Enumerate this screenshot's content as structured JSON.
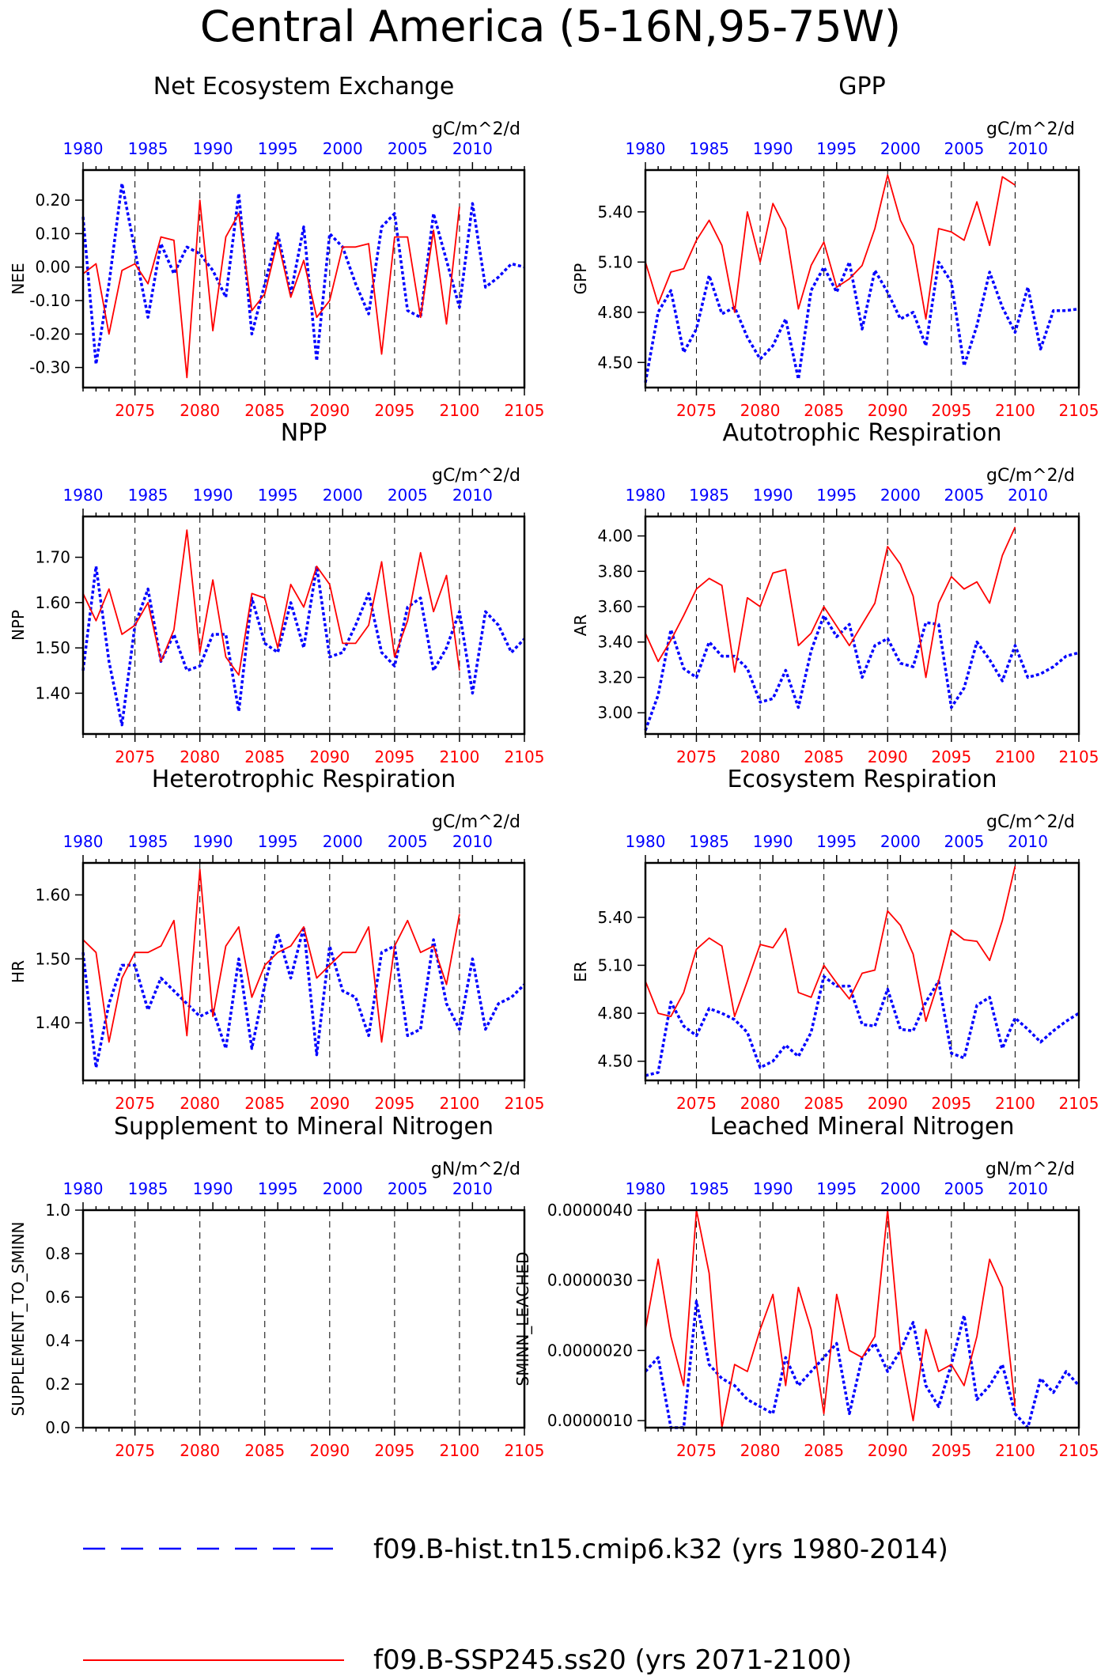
{
  "title": "Central America (5-16N,95-75W)",
  "colors": {
    "hist": "#0000ff",
    "ssp": "#ff0000",
    "axis": "#000000",
    "grid": "#000000"
  },
  "legend": {
    "hist_label": "f09.B-hist.tn15.cmip6.k32 (yrs 1980-2014)",
    "ssp_label": "f09.B-SSP245.ss20 (yrs 2071-2100)"
  },
  "chart_data": [
    {
      "type": "line",
      "title": "Net Ecosystem Exchange",
      "ylabel": "NEE",
      "units": "gC/m^2/d",
      "ylim": [
        -0.36,
        0.29
      ],
      "yticks": [
        0.2,
        0.1,
        0.0,
        -0.1,
        -0.2,
        -0.3
      ],
      "ytick_labels": [
        "0.20",
        "0.10",
        "0.00",
        "-0.10",
        "-0.20",
        "-0.30"
      ],
      "top_xticks": [
        "1980",
        "1985",
        "1990",
        "1995",
        "2000",
        "2005",
        "2010"
      ],
      "bottom_xticks": [
        "2075",
        "2080",
        "2085",
        "2090",
        "2095",
        "2100",
        "2105"
      ],
      "series": [
        {
          "name": "f09.B-hist.tn15.cmip6.k32",
          "start_year": 1980,
          "values": [
            0.15,
            -0.29,
            -0.05,
            0.25,
            0.05,
            -0.15,
            0.07,
            -0.02,
            0.06,
            0.04,
            -0.01,
            -0.09,
            0.22,
            -0.2,
            -0.05,
            0.1,
            -0.08,
            0.12,
            -0.28,
            0.1,
            0.06,
            -0.05,
            -0.14,
            0.12,
            0.16,
            -0.13,
            -0.15,
            0.16,
            0.02,
            -0.12,
            0.19,
            -0.06,
            -0.03,
            0.01,
            0.0
          ]
        },
        {
          "name": "f09.B-SSP245.ss20",
          "start_year": 2071,
          "values": [
            -0.02,
            0.01,
            -0.2,
            -0.01,
            0.01,
            -0.05,
            0.09,
            0.08,
            -0.33,
            0.2,
            -0.19,
            0.09,
            0.16,
            -0.13,
            -0.08,
            0.08,
            -0.09,
            0.02,
            -0.15,
            -0.1,
            0.06,
            0.06,
            0.07,
            -0.26,
            0.09,
            0.09,
            -0.15,
            0.11,
            -0.17,
            0.18
          ]
        }
      ]
    },
    {
      "type": "line",
      "title": "GPP",
      "ylabel": "GPP",
      "units": "gC/m^2/d",
      "ylim": [
        4.35,
        5.65
      ],
      "yticks": [
        5.4,
        5.1,
        4.8,
        4.5
      ],
      "ytick_labels": [
        "5.40",
        "5.10",
        "4.80",
        "4.50"
      ],
      "top_xticks": [
        "1980",
        "1985",
        "1990",
        "1995",
        "2000",
        "2005",
        "2010"
      ],
      "bottom_xticks": [
        "2075",
        "2080",
        "2085",
        "2090",
        "2095",
        "2100",
        "2105"
      ],
      "series": [
        {
          "name": "f09.B-hist.tn15.cmip6.k32",
          "start_year": 1980,
          "values": [
            4.38,
            4.8,
            4.93,
            4.56,
            4.7,
            5.02,
            4.79,
            4.83,
            4.65,
            4.52,
            4.6,
            4.76,
            4.4,
            4.93,
            5.07,
            4.92,
            5.1,
            4.7,
            5.05,
            4.92,
            4.76,
            4.8,
            4.6,
            5.1,
            4.98,
            4.48,
            4.72,
            5.04,
            4.83,
            4.68,
            4.95,
            4.58,
            4.81,
            4.81,
            4.82
          ]
        },
        {
          "name": "f09.B-SSP245.ss20",
          "start_year": 2071,
          "values": [
            5.1,
            4.85,
            5.04,
            5.06,
            5.23,
            5.35,
            5.2,
            4.8,
            5.4,
            5.1,
            5.45,
            5.3,
            4.82,
            5.08,
            5.22,
            4.95,
            5.0,
            5.08,
            5.3,
            5.62,
            5.35,
            5.2,
            4.76,
            5.3,
            5.28,
            5.23,
            5.46,
            5.2,
            5.61,
            5.56
          ]
        }
      ]
    },
    {
      "type": "line",
      "title": "NPP",
      "ylabel": "NPP",
      "units": "gC/m^2/d",
      "ylim": [
        1.31,
        1.79
      ],
      "yticks": [
        1.7,
        1.6,
        1.5,
        1.4
      ],
      "ytick_labels": [
        "1.70",
        "1.60",
        "1.50",
        "1.40"
      ],
      "top_xticks": [
        "1980",
        "1985",
        "1990",
        "1995",
        "2000",
        "2005",
        "2010"
      ],
      "bottom_xticks": [
        "2075",
        "2080",
        "2085",
        "2090",
        "2095",
        "2100",
        "2105"
      ],
      "series": [
        {
          "name": "f09.B-hist.tn15.cmip6.k32",
          "start_year": 1980,
          "values": [
            1.45,
            1.68,
            1.47,
            1.33,
            1.55,
            1.63,
            1.47,
            1.53,
            1.45,
            1.46,
            1.53,
            1.53,
            1.36,
            1.61,
            1.51,
            1.49,
            1.6,
            1.5,
            1.68,
            1.48,
            1.49,
            1.55,
            1.62,
            1.49,
            1.46,
            1.59,
            1.61,
            1.45,
            1.5,
            1.58,
            1.4,
            1.58,
            1.55,
            1.49,
            1.52
          ]
        },
        {
          "name": "f09.B-SSP245.ss20",
          "start_year": 2071,
          "values": [
            1.62,
            1.56,
            1.63,
            1.53,
            1.55,
            1.6,
            1.47,
            1.54,
            1.76,
            1.49,
            1.65,
            1.48,
            1.44,
            1.62,
            1.61,
            1.5,
            1.64,
            1.59,
            1.68,
            1.64,
            1.51,
            1.51,
            1.55,
            1.69,
            1.48,
            1.56,
            1.71,
            1.58,
            1.66,
            1.45
          ]
        }
      ]
    },
    {
      "type": "line",
      "title": "Autotrophic Respiration",
      "ylabel": "AR",
      "units": "gC/m^2/d",
      "ylim": [
        2.88,
        4.11
      ],
      "yticks": [
        4.0,
        3.8,
        3.6,
        3.4,
        3.2,
        3.0
      ],
      "ytick_labels": [
        "4.00",
        "3.80",
        "3.60",
        "3.40",
        "3.20",
        "3.00"
      ],
      "top_xticks": [
        "1980",
        "1985",
        "1990",
        "1995",
        "2000",
        "2005",
        "2010"
      ],
      "bottom_xticks": [
        "2075",
        "2080",
        "2085",
        "2090",
        "2095",
        "2100",
        "2105"
      ],
      "series": [
        {
          "name": "f09.B-hist.tn15.cmip6.k32",
          "start_year": 1980,
          "values": [
            2.9,
            3.1,
            3.47,
            3.25,
            3.2,
            3.4,
            3.32,
            3.32,
            3.25,
            3.06,
            3.08,
            3.24,
            3.03,
            3.35,
            3.55,
            3.43,
            3.5,
            3.2,
            3.38,
            3.42,
            3.28,
            3.26,
            3.51,
            3.5,
            3.03,
            3.14,
            3.4,
            3.3,
            3.18,
            3.38,
            3.2,
            3.22,
            3.26,
            3.32,
            3.34
          ]
        },
        {
          "name": "f09.B-SSP245.ss20",
          "start_year": 2071,
          "values": [
            3.45,
            3.29,
            3.41,
            3.55,
            3.7,
            3.76,
            3.72,
            3.23,
            3.65,
            3.6,
            3.79,
            3.81,
            3.38,
            3.45,
            3.6,
            3.49,
            3.38,
            3.5,
            3.62,
            3.94,
            3.84,
            3.66,
            3.2,
            3.62,
            3.77,
            3.7,
            3.74,
            3.62,
            3.89,
            4.05
          ]
        }
      ]
    },
    {
      "type": "line",
      "title": "Heterotrophic Respiration",
      "ylabel": "HR",
      "units": "gC/m^2/d",
      "ylim": [
        1.31,
        1.65
      ],
      "yticks": [
        1.6,
        1.5,
        1.4
      ],
      "ytick_labels": [
        "1.60",
        "1.50",
        "1.40"
      ],
      "top_xticks": [
        "1980",
        "1985",
        "1990",
        "1995",
        "2000",
        "2005",
        "2010"
      ],
      "bottom_xticks": [
        "2075",
        "2080",
        "2085",
        "2090",
        "2095",
        "2100",
        "2105"
      ],
      "series": [
        {
          "name": "f09.B-hist.tn15.cmip6.k32",
          "start_year": 1980,
          "values": [
            1.51,
            1.33,
            1.43,
            1.49,
            1.49,
            1.42,
            1.47,
            1.45,
            1.43,
            1.41,
            1.42,
            1.36,
            1.5,
            1.36,
            1.46,
            1.54,
            1.47,
            1.55,
            1.35,
            1.52,
            1.45,
            1.44,
            1.38,
            1.51,
            1.52,
            1.38,
            1.39,
            1.53,
            1.43,
            1.39,
            1.5,
            1.39,
            1.43,
            1.44,
            1.46
          ]
        },
        {
          "name": "f09.B-SSP245.ss20",
          "start_year": 2071,
          "values": [
            1.53,
            1.51,
            1.37,
            1.47,
            1.51,
            1.51,
            1.52,
            1.56,
            1.38,
            1.64,
            1.41,
            1.52,
            1.55,
            1.44,
            1.49,
            1.51,
            1.52,
            1.55,
            1.47,
            1.49,
            1.51,
            1.51,
            1.55,
            1.37,
            1.52,
            1.56,
            1.51,
            1.52,
            1.46,
            1.57
          ]
        }
      ]
    },
    {
      "type": "line",
      "title": "Ecosystem Respiration",
      "ylabel": "ER",
      "units": "gC/m^2/d",
      "ylim": [
        4.38,
        5.74
      ],
      "yticks": [
        5.4,
        5.1,
        4.8,
        4.5
      ],
      "ytick_labels": [
        "5.40",
        "5.10",
        "4.80",
        "4.50"
      ],
      "top_xticks": [
        "1980",
        "1985",
        "1990",
        "1995",
        "2000",
        "2005",
        "2010"
      ],
      "bottom_xticks": [
        "2075",
        "2080",
        "2085",
        "2090",
        "2095",
        "2100",
        "2105"
      ],
      "series": [
        {
          "name": "f09.B-hist.tn15.cmip6.k32",
          "start_year": 1980,
          "values": [
            4.41,
            4.43,
            4.87,
            4.72,
            4.66,
            4.83,
            4.8,
            4.76,
            4.68,
            4.46,
            4.5,
            4.6,
            4.53,
            4.68,
            5.03,
            4.97,
            4.97,
            4.73,
            4.72,
            4.95,
            4.7,
            4.69,
            4.87,
            5.0,
            4.55,
            4.52,
            4.85,
            4.9,
            4.58,
            4.77,
            4.7,
            4.62,
            4.69,
            4.75,
            4.8
          ]
        },
        {
          "name": "f09.B-SSP245.ss20",
          "start_year": 2071,
          "values": [
            5.0,
            4.8,
            4.78,
            4.93,
            5.2,
            5.27,
            5.22,
            4.78,
            5.0,
            5.23,
            5.21,
            5.33,
            4.93,
            4.9,
            5.1,
            4.99,
            4.89,
            5.05,
            5.07,
            5.44,
            5.35,
            5.17,
            4.75,
            5.0,
            5.32,
            5.26,
            5.25,
            5.13,
            5.38,
            5.72
          ]
        }
      ]
    },
    {
      "type": "line",
      "title": "Supplement to Mineral Nitrogen",
      "ylabel": "SUPPLEMENT_TO_SMINN",
      "units": "gN/m^2/d",
      "ylim": [
        0.0,
        1.0
      ],
      "yticks": [
        1.0,
        0.8,
        0.6,
        0.4,
        0.2,
        0.0
      ],
      "ytick_labels": [
        "1.0",
        "0.8",
        "0.6",
        "0.4",
        "0.2",
        "0.0"
      ],
      "top_xticks": [
        "1980",
        "1985",
        "1990",
        "1995",
        "2000",
        "2005",
        "2010"
      ],
      "bottom_xticks": [
        "2075",
        "2080",
        "2085",
        "2090",
        "2095",
        "2100",
        "2105"
      ],
      "series": []
    },
    {
      "type": "line",
      "title": "Leached Mineral Nitrogen",
      "ylabel": "SMINN_LEACHED",
      "units": "gN/m^2/d",
      "ylim": [
        9e-07,
        4e-06
      ],
      "yticks": [
        4e-06,
        3e-06,
        2e-06,
        1e-06
      ],
      "ytick_labels": [
        "0.0000040",
        "0.0000030",
        "0.0000020",
        "0.0000010"
      ],
      "top_xticks": [
        "1980",
        "1985",
        "1990",
        "1995",
        "2000",
        "2005",
        "2010"
      ],
      "bottom_xticks": [
        "2075",
        "2080",
        "2085",
        "2090",
        "2095",
        "2100",
        "2105"
      ],
      "series": [
        {
          "name": "f09.B-hist.tn15.cmip6.k32",
          "start_year": 1980,
          "values": [
            1.7e-06,
            1.9e-06,
            9e-07,
            9e-07,
            2.7e-06,
            1.8e-06,
            1.6e-06,
            1.5e-06,
            1.3e-06,
            1.2e-06,
            1.1e-06,
            1.9e-06,
            1.5e-06,
            1.7e-06,
            1.9e-06,
            2.1e-06,
            1.1e-06,
            1.9e-06,
            2.1e-06,
            1.7e-06,
            2e-06,
            2.4e-06,
            1.5e-06,
            1.2e-06,
            1.8e-06,
            2.5e-06,
            1.3e-06,
            1.5e-06,
            1.8e-06,
            1.1e-06,
            9e-07,
            1.6e-06,
            1.4e-06,
            1.7e-06,
            1.5e-06
          ]
        },
        {
          "name": "f09.B-SSP245.ss20",
          "start_year": 2071,
          "values": [
            2.3e-06,
            3.3e-06,
            2.2e-06,
            1.5e-06,
            4e-06,
            3.1e-06,
            9e-07,
            1.8e-06,
            1.7e-06,
            2.3e-06,
            2.8e-06,
            1.5e-06,
            2.9e-06,
            2.3e-06,
            1.1e-06,
            2.8e-06,
            2e-06,
            1.9e-06,
            2.2e-06,
            4e-06,
            2e-06,
            1e-06,
            2.3e-06,
            1.7e-06,
            1.8e-06,
            1.5e-06,
            2.2e-06,
            3.3e-06,
            2.9e-06,
            1.2e-06
          ]
        }
      ]
    }
  ]
}
